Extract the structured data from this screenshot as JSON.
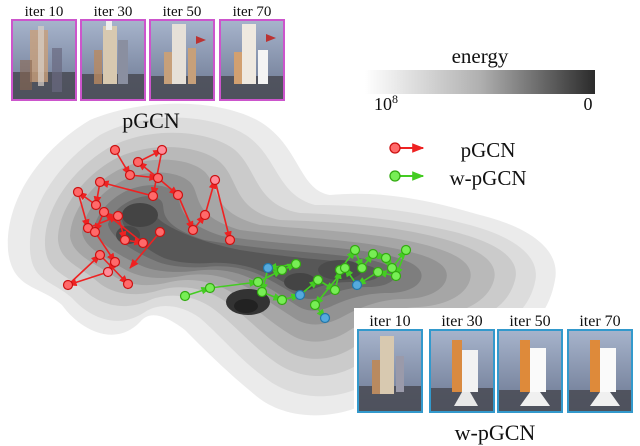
{
  "top_panel": {
    "title": "pGCN",
    "frames": [
      {
        "label": "iter 10"
      },
      {
        "label": "iter 30"
      },
      {
        "label": "iter 50"
      },
      {
        "label": "iter 70"
      }
    ],
    "border_color": "#cc55cc"
  },
  "bottom_panel": {
    "title": "w-pGCN",
    "frames": [
      {
        "label": "iter 10"
      },
      {
        "label": "iter 30"
      },
      {
        "label": "iter 50"
      },
      {
        "label": "iter 70"
      }
    ],
    "border_color": "#3399cc"
  },
  "colorbar": {
    "title": "energy",
    "left_label": "10",
    "left_exponent": "8",
    "right_label": "0"
  },
  "legend": [
    {
      "label": "pGCN",
      "color": "#ee2222"
    },
    {
      "label": "w-pGCN",
      "color": "#55dd33"
    }
  ]
}
